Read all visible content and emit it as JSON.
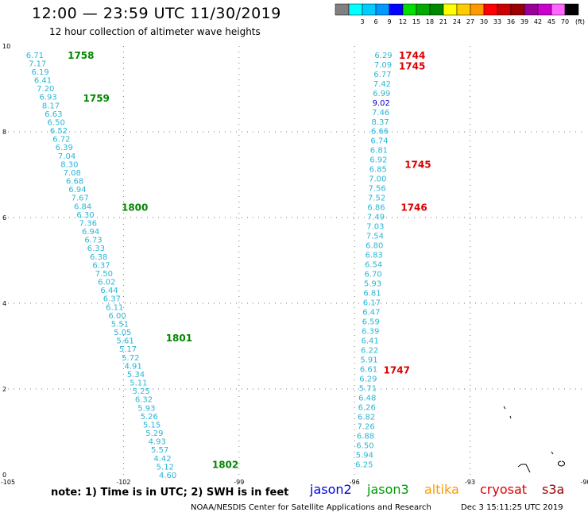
{
  "header": {
    "title": "12:00 — 23:59 UTC 11/30/2019",
    "subtitle": "12 hour collection of altimeter wave heights"
  },
  "color_scale": {
    "unit": "(ft)",
    "swatches": [
      {
        "color": "#808080",
        "label": ""
      },
      {
        "color": "#00ffff",
        "label": "3"
      },
      {
        "color": "#00ccff",
        "label": "6"
      },
      {
        "color": "#0099ff",
        "label": "9"
      },
      {
        "color": "#0000ff",
        "label": "12"
      },
      {
        "color": "#00dd00",
        "label": "15"
      },
      {
        "color": "#00aa00",
        "label": "18"
      },
      {
        "color": "#008800",
        "label": "21"
      },
      {
        "color": "#ffff00",
        "label": "24"
      },
      {
        "color": "#ffcc00",
        "label": "27"
      },
      {
        "color": "#ff9900",
        "label": "30"
      },
      {
        "color": "#ff0000",
        "label": "33"
      },
      {
        "color": "#cc0000",
        "label": "36"
      },
      {
        "color": "#990000",
        "label": "39"
      },
      {
        "color": "#990099",
        "label": "42"
      },
      {
        "color": "#cc00cc",
        "label": "45"
      },
      {
        "color": "#ff66ff",
        "label": "70"
      },
      {
        "color": "#000000",
        "label": ""
      }
    ]
  },
  "axes": {
    "x_ticks": [
      -105,
      -102,
      -99,
      -96,
      -93,
      -90
    ],
    "y_ticks": [
      0,
      2,
      4,
      6,
      8,
      10
    ],
    "x_labels": [
      "-105",
      "-102",
      "-99",
      "-96",
      "-93",
      "-90"
    ],
    "y_labels": [
      "0",
      "2",
      "4",
      "6",
      "8",
      "10"
    ]
  },
  "track_left": {
    "color": "#29b6d6",
    "start": [
      -104.3,
      9.8
    ],
    "end": [
      -100.85,
      0.0
    ],
    "values": [
      "6.71",
      "7.17",
      "6.19",
      "6.41",
      "7.20",
      "6.93",
      "8.17",
      "6.63",
      "6.50",
      "6.52",
      "6.72",
      "6.39",
      "7.04",
      "8.30",
      "7.08",
      "6.68",
      "6.94",
      "7.67",
      "6.84",
      "6.30",
      "7.36",
      "6.94",
      "6.73",
      "6.33",
      "6.38",
      "6.37",
      "7.50",
      "6.02",
      "6.44",
      "6.37",
      "6.11",
      "6.00",
      "5.51",
      "5.05",
      "5.61",
      "5.17",
      "5.72",
      "4.91",
      "5.34",
      "5.11",
      "5.25",
      "6.32",
      "5.93",
      "5.26",
      "5.15",
      "5.29",
      "4.93",
      "5.57",
      "4.42",
      "5.12",
      "4.60"
    ],
    "times": [
      {
        "label": "1758",
        "lon": -103.45,
        "lat": 9.8
      },
      {
        "label": "1759",
        "lon": -103.05,
        "lat": 8.8
      },
      {
        "label": "1800",
        "lon": -102.05,
        "lat": 6.25
      },
      {
        "label": "1801",
        "lon": -100.9,
        "lat": 3.2
      },
      {
        "label": "1802",
        "lon": -99.7,
        "lat": 0.25
      }
    ],
    "time_color": "#008800"
  },
  "track_right": {
    "color": "#29b6d6",
    "start": [
      -95.25,
      9.8
    ],
    "end": [
      -95.75,
      0.25
    ],
    "values": [
      "6.29",
      "7.09",
      "6.77",
      "7.42",
      "6.99",
      "9.02",
      "7.46",
      "8.37",
      "6.66",
      "6.74",
      "6.81",
      "6.92",
      "6.85",
      "7.00",
      "7.56",
      "7.52",
      "6.86",
      "7.49",
      "7.03",
      "7.54",
      "6.80",
      "6.83",
      "6.54",
      "6.70",
      "5.93",
      "6.81",
      "6.17",
      "6.47",
      "6.59",
      "6.39",
      "6.41",
      "6.22",
      "5.91",
      "6.61",
      "6.29",
      "5.71",
      "6.48",
      "6.26",
      "6.82",
      "7.26",
      "6.88",
      "6.50",
      "5.94",
      "6.25"
    ],
    "highlight": {
      "index": 5,
      "color": "#0000cc"
    },
    "times": [
      {
        "label": "1744",
        "lon": -94.85,
        "lat": 9.8
      },
      {
        "label": "1745",
        "lon": -94.85,
        "lat": 9.55
      },
      {
        "label": "1745",
        "lon": -94.7,
        "lat": 7.25
      },
      {
        "label": "1746",
        "lon": -94.8,
        "lat": 6.25
      },
      {
        "label": "1747",
        "lon": -95.25,
        "lat": 2.45
      }
    ],
    "time_color": "#dd0000"
  },
  "footer": {
    "note": "note: 1) Time is in UTC; 2) SWH is in feet",
    "satellites": [
      {
        "name": "jason2",
        "color": "#0000dd"
      },
      {
        "name": "jason3",
        "color": "#009900"
      },
      {
        "name": "altika",
        "color": "#ff9900"
      },
      {
        "name": "cryosat",
        "color": "#dd0000"
      },
      {
        "name": "s3a",
        "color": "#990000"
      }
    ],
    "credit": "NOAA/NESDIS Center for Satellite Applications and Research",
    "timestamp": "Dec  3 15:11:25 UTC 2019"
  }
}
